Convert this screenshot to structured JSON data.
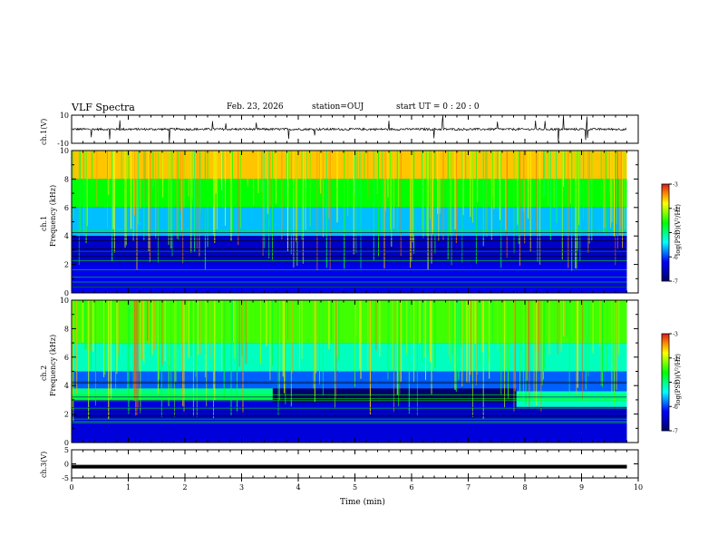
{
  "header": {
    "title": "VLF Spectra",
    "date": "Feb. 23, 2026",
    "station": "station=OUJ",
    "start": "start  UT =   0 : 20 : 0"
  },
  "chart_data": [
    {
      "type": "line",
      "panel": "waveform-ch1",
      "ylabel": "ch.1(V)",
      "ylim": [
        -10,
        10
      ],
      "yticks": [
        "10",
        "-10"
      ],
      "baseline": 0
    },
    {
      "type": "heatmap",
      "panel": "spectrogram-ch1",
      "ylabel_line1": "ch.1",
      "ylabel_line2": "Frequency (kHz)",
      "ylim": [
        0,
        10
      ],
      "yticks": [
        "10",
        "8",
        "6",
        "4",
        "2",
        "0"
      ],
      "colorbar": {
        "label": "log(PSD)(V²/Hz)",
        "range": [
          -7,
          -3
        ],
        "ticks": [
          "-3",
          "-4",
          "-5",
          "-6",
          "-7"
        ]
      },
      "bands": [
        {
          "from": 8.0,
          "to": 10.0,
          "level": -3.6
        },
        {
          "from": 6.0,
          "to": 8.0,
          "level": -4.6
        },
        {
          "from": 4.0,
          "to": 6.0,
          "level": -5.6
        },
        {
          "from": 2.0,
          "to": 4.0,
          "level": -6.5
        },
        {
          "from": 0.0,
          "to": 2.0,
          "level": -6.3
        }
      ]
    },
    {
      "type": "heatmap",
      "panel": "spectrogram-ch2",
      "ylabel_line1": "ch.2",
      "ylabel_line2": "Frequency (kHz)",
      "ylim": [
        0,
        10
      ],
      "yticks": [
        "10",
        "8",
        "6",
        "4",
        "2",
        "0"
      ],
      "colorbar": {
        "label": "log(PSD)(V²/Hz)",
        "range": [
          -7,
          -3
        ],
        "ticks": [
          "-3",
          "-4",
          "-5",
          "-6",
          "-7"
        ]
      },
      "bands": [
        {
          "from": 7.0,
          "to": 10.0,
          "level": -4.4
        },
        {
          "from": 5.0,
          "to": 7.0,
          "level": -5.2
        },
        {
          "from": 3.5,
          "to": 5.0,
          "level": -5.9
        },
        {
          "from": 0.0,
          "to": 3.5,
          "level": -6.4
        }
      ],
      "segments": [
        {
          "t0": 0.0,
          "t1": 3.55,
          "from": 3.0,
          "to": 3.8,
          "level": -5.0
        },
        {
          "t0": 3.55,
          "t1": 7.85,
          "from": 2.8,
          "to": 3.8,
          "level": -7.0
        },
        {
          "t0": 7.85,
          "t1": 9.8,
          "from": 2.5,
          "to": 3.6,
          "level": -5.2
        }
      ]
    },
    {
      "type": "line",
      "panel": "waveform-ch3",
      "ylabel": "ch.3(V)",
      "ylim": [
        -5,
        5
      ],
      "yticks": [
        "5",
        "0",
        "-5"
      ],
      "baseline": -1
    }
  ],
  "xaxis": {
    "label": "Time (min)",
    "range": [
      0,
      10
    ],
    "data_end": 9.8,
    "ticks": [
      "0",
      "1",
      "2",
      "3",
      "4",
      "5",
      "6",
      "7",
      "8",
      "9",
      "10"
    ]
  },
  "colors": {
    "red": "#d7191c",
    "orange": "#ff8c00",
    "yellow": "#ffff00",
    "green": "#00ff00",
    "cyan": "#00ffff",
    "blue": "#0000ff",
    "navy": "#00006e",
    "black": "#000000"
  }
}
